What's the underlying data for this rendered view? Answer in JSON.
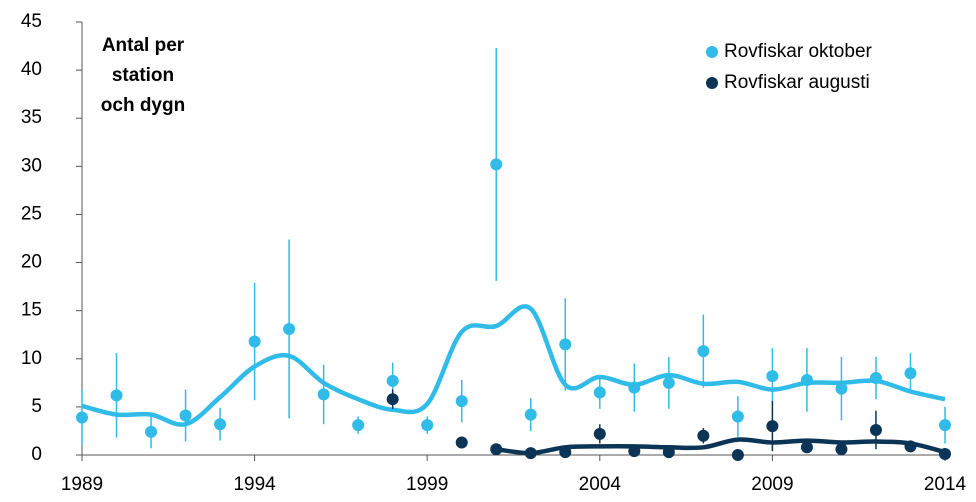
{
  "chart_data": {
    "type": "scatter",
    "annotation": [
      "Antal per",
      "station",
      "och dygn"
    ],
    "xlim": [
      1989,
      2014
    ],
    "xticks": [
      1989,
      1994,
      1999,
      2004,
      2009,
      2014
    ],
    "ylim": [
      0,
      45
    ],
    "yticks": [
      0,
      5,
      10,
      15,
      20,
      25,
      30,
      35,
      40,
      45
    ],
    "legend": "top-right",
    "series": [
      {
        "name": "Rovfiskar oktober",
        "color": "#30bbe8",
        "x": [
          1989,
          1990,
          1991,
          1992,
          1993,
          1994,
          1995,
          1996,
          1997,
          1998,
          1999,
          2000,
          2001,
          2002,
          2003,
          2004,
          2005,
          2006,
          2007,
          2008,
          2009,
          2010,
          2011,
          2012,
          2013,
          2014
        ],
        "values": [
          3.9,
          6.2,
          2.4,
          4.1,
          3.2,
          11.8,
          13.1,
          6.3,
          3.1,
          7.7,
          3.1,
          5.6,
          30.2,
          4.2,
          11.5,
          6.5,
          7.0,
          7.5,
          10.8,
          4.0,
          8.2,
          7.8,
          6.9,
          8.0,
          8.5,
          3.1
        ],
        "errors": [
          2.9,
          4.4,
          1.7,
          2.7,
          1.7,
          6.1,
          9.3,
          3.1,
          0.9,
          1.9,
          0.9,
          2.2,
          12.1,
          1.7,
          4.8,
          1.7,
          2.5,
          2.7,
          3.8,
          2.1,
          2.9,
          3.3,
          3.3,
          2.2,
          2.1,
          1.9
        ],
        "trend": [
          5.1,
          4.2,
          4.2,
          3.2,
          6.0,
          9.2,
          10.3,
          7.5,
          5.8,
          4.7,
          5.3,
          12.8,
          13.4,
          15.2,
          7.3,
          8.1,
          7.3,
          8.3,
          7.4,
          7.6,
          6.8,
          7.5,
          7.5,
          7.7,
          6.6,
          5.8
        ]
      },
      {
        "name": "Rovfiskar augusti",
        "color": "#0c3457",
        "x": [
          1998,
          2000,
          2001,
          2002,
          2003,
          2004,
          2005,
          2006,
          2007,
          2008,
          2009,
          2010,
          2011,
          2012,
          2013,
          2014
        ],
        "values": [
          5.8,
          1.3,
          0.6,
          0.2,
          0.3,
          2.2,
          0.4,
          0.3,
          2.0,
          0.0,
          3.0,
          0.8,
          0.6,
          2.6,
          0.9,
          0.1
        ],
        "errors": [
          1.0,
          0.6,
          null,
          null,
          null,
          1.0,
          null,
          null,
          0.8,
          null,
          2.6,
          0.6,
          null,
          2.0,
          0.6,
          null
        ],
        "trend": [
          null,
          null,
          0.6,
          0.2,
          0.8,
          0.9,
          0.9,
          0.8,
          0.8,
          1.6,
          1.3,
          1.5,
          1.3,
          1.4,
          1.2,
          0.3
        ]
      }
    ]
  }
}
